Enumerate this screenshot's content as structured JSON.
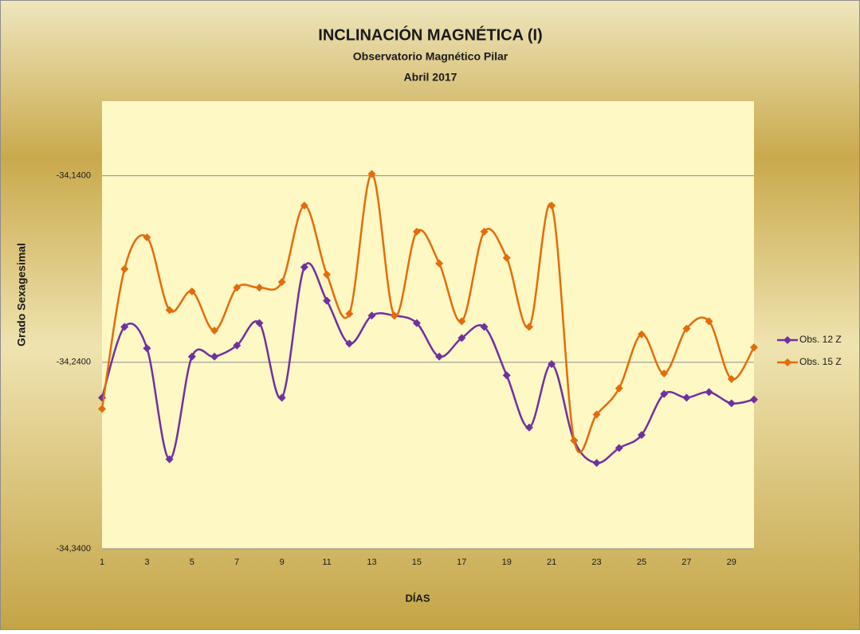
{
  "chart_data": {
    "type": "line",
    "title": "INCLINACIÓN MAGNÉTICA (I)",
    "subtitle": "Observatorio Magnético Pilar",
    "subtitle2": "Abril 2017",
    "x_label": "DÍAS",
    "y_label": "Grado Sexagesimal",
    "categories": [
      "1",
      null,
      "3",
      null,
      "5",
      null,
      "7",
      null,
      "9",
      null,
      "11",
      null,
      "13",
      null,
      "15",
      null,
      "17",
      null,
      "19",
      null,
      "21",
      null,
      "23",
      null,
      "25",
      null,
      "27",
      null,
      "29",
      null
    ],
    "ylim": [
      -34.34,
      -34.1
    ],
    "yticks": [
      {
        "value": -34.34,
        "label": "-34,3400"
      },
      {
        "value": -34.24,
        "label": "-34,2400"
      },
      {
        "value": -34.14,
        "label": "-34,1400"
      }
    ],
    "grid": true,
    "smooth": true,
    "legend": "right",
    "series": [
      {
        "name": "Obs. 12 Z",
        "color": "#7030a0",
        "values": [
          -34.259,
          -34.221,
          -34.2325,
          -34.292,
          -34.237,
          -34.237,
          -34.231,
          -34.219,
          -34.259,
          -34.189,
          -34.207,
          -34.23,
          -34.215,
          -34.215,
          -34.219,
          -34.237,
          -34.227,
          -34.221,
          -34.247,
          -34.275,
          -34.241,
          -34.282,
          -34.294,
          -34.286,
          -34.279,
          -34.257,
          -34.259,
          -34.256,
          -34.262,
          -34.26
        ]
      },
      {
        "name": "Obs. 15 Z",
        "color": "#e46c0a",
        "values": [
          -34.265,
          -34.19,
          -34.173,
          -34.212,
          -34.202,
          -34.223,
          -34.2,
          -34.2,
          -34.197,
          -34.156,
          -34.193,
          -34.214,
          -34.139,
          -34.215,
          -34.17,
          -34.187,
          -34.218,
          -34.17,
          -34.184,
          -34.221,
          -34.156,
          -34.282,
          -34.268,
          -34.254,
          -34.225,
          -34.246,
          -34.222,
          -34.218,
          -34.249,
          -34.232
        ]
      }
    ]
  }
}
